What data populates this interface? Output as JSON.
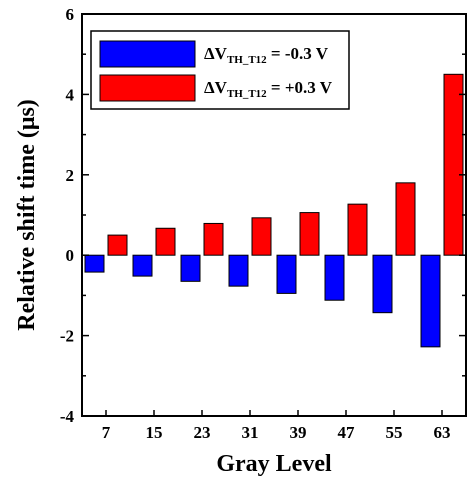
{
  "chart_data": {
    "type": "bar",
    "title": "",
    "xlabel": "Gray Level",
    "ylabel": "Relative shift time (μs)",
    "categories": [
      "7",
      "15",
      "23",
      "31",
      "39",
      "47",
      "55",
      "63"
    ],
    "ylim": [
      -4,
      6
    ],
    "yticks": [
      -4,
      -2,
      0,
      2,
      4,
      6
    ],
    "grid": false,
    "legend_position": "top-left",
    "series": [
      {
        "legend_main": "ΔV",
        "legend_sub": "TH_T12",
        "legend_value": " = -0.3 V",
        "color": "#0000ff",
        "values": [
          -0.42,
          -0.52,
          -0.65,
          -0.77,
          -0.95,
          -1.12,
          -1.43,
          -2.28
        ]
      },
      {
        "legend_main": "ΔV",
        "legend_sub": "TH_T12",
        "legend_value": " = +0.3 V",
        "color": "#ff0000",
        "values": [
          0.5,
          0.67,
          0.79,
          0.93,
          1.06,
          1.27,
          1.8,
          4.5
        ]
      }
    ]
  }
}
